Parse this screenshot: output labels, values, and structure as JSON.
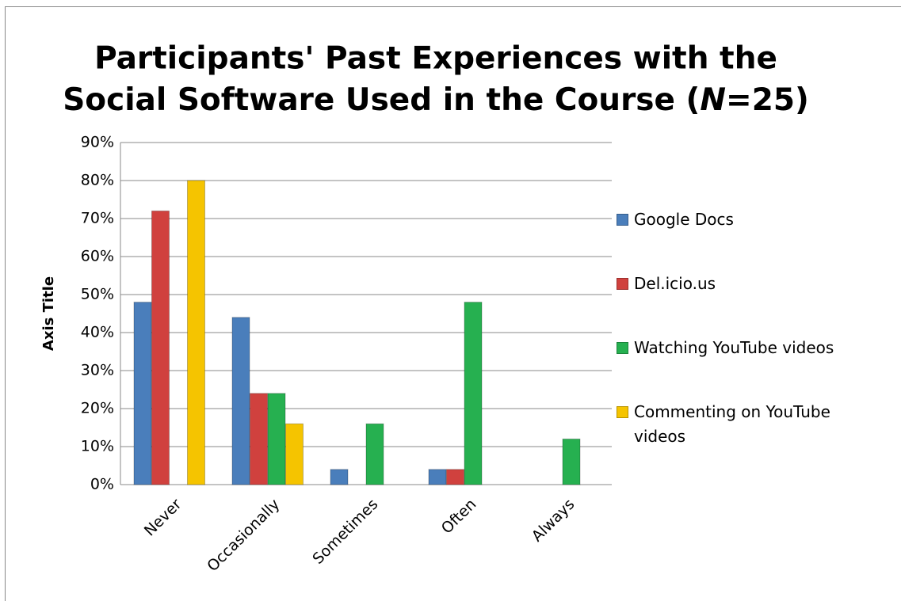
{
  "chart_data": {
    "type": "bar",
    "title": [
      "Participants' Past  Experiences with the",
      [
        "Social Software Used in the Course (",
        "N",
        "=25)"
      ]
    ],
    "y_label": "Axis Title",
    "categories": [
      "Never",
      "Occasionally",
      "Sometimes",
      "Often",
      "Always"
    ],
    "series": [
      {
        "name": "Google Docs",
        "color": "#4a7ebb",
        "values": [
          48,
          44,
          4,
          4,
          0
        ]
      },
      {
        "name": "Del.icio.us",
        "color": "#d0413e",
        "values": [
          72,
          24,
          0,
          4,
          0
        ]
      },
      {
        "name": "Watching YouTube videos",
        "color": "#26b050",
        "values": [
          0,
          24,
          16,
          48,
          12
        ]
      },
      {
        "name": "Commenting on YouTube videos",
        "color": "#f5c400",
        "values": [
          80,
          16,
          0,
          0,
          0
        ]
      }
    ],
    "ylim": [
      0,
      90
    ],
    "yticks": [
      {
        "value": 0,
        "label": "0%"
      },
      {
        "value": 10,
        "label": "10%"
      },
      {
        "value": 20,
        "label": "20%"
      },
      {
        "value": 30,
        "label": "30%"
      },
      {
        "value": 40,
        "label": "40%"
      },
      {
        "value": 50,
        "label": "50%"
      },
      {
        "value": 60,
        "label": "60%"
      },
      {
        "value": 70,
        "label": "70%"
      },
      {
        "value": 80,
        "label": "80%"
      },
      {
        "value": 90,
        "label": "90%"
      }
    ],
    "grid": true
  }
}
